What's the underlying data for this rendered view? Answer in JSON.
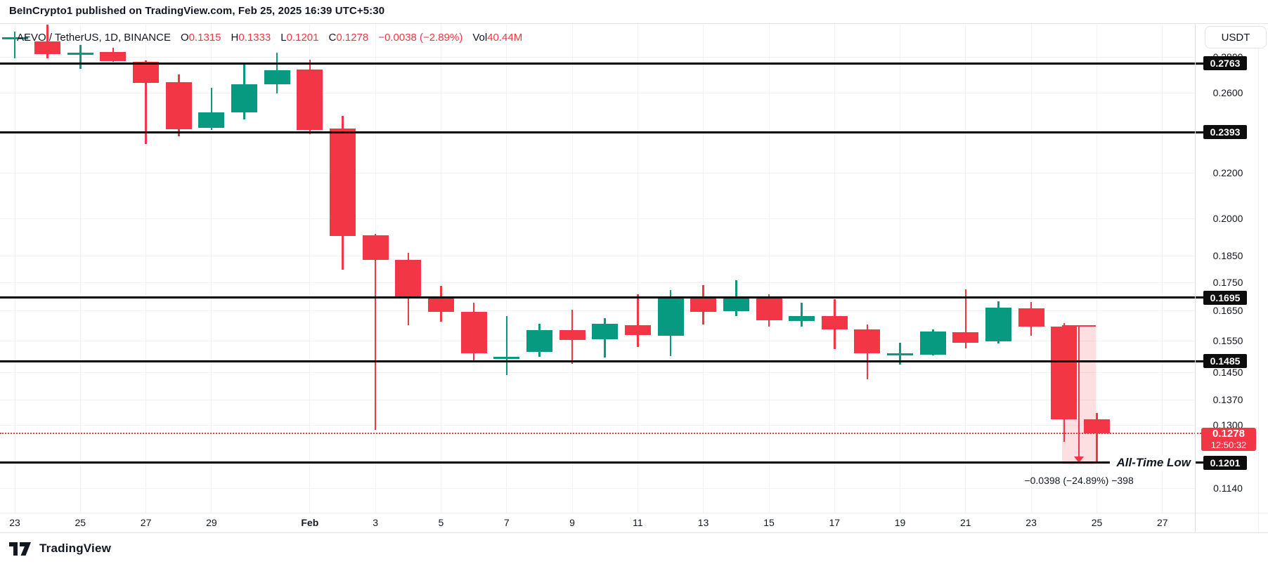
{
  "header": {
    "title": "BeInCrypto1 published on TradingView.com, Feb 25, 2025 16:39 UTC+5:30"
  },
  "legend": {
    "symbol": "AEVO / TetherUS, 1D, BINANCE",
    "open_label": "O",
    "open": "0.1315",
    "high_label": "H",
    "high": "0.1333",
    "low_label": "L",
    "low": "0.1201",
    "close_label": "C",
    "close": "0.1278",
    "change": "−0.0038 (−2.89%)",
    "volume_label": "Vol",
    "volume": "40.44M"
  },
  "price_axis": {
    "currency_button": "USDT",
    "current_price_badge": {
      "price": "0.1278",
      "countdown": "12:50:32"
    }
  },
  "annotations": {
    "all_time_low": "All-Time Low",
    "measurement_label": "−0.0398 (−24.89%) −398"
  },
  "footer": {
    "logo_text": "TradingView"
  },
  "colors": {
    "up": "#089981",
    "down": "#f23645",
    "level_line": "#000000",
    "level_badge_bg": "#0d0d0d",
    "current_price": "#f23645",
    "grid": "#f0f2f6"
  },
  "chart_data": {
    "type": "candlestick",
    "title": "AEVO / TetherUS, 1D, BINANCE",
    "scale": "log",
    "ylabel": "USDT",
    "candles": [
      {
        "date": "Jan 23",
        "o": 0.2905,
        "h": 0.2951,
        "l": 0.2791,
        "c": 0.2913
      },
      {
        "date": "Jan 24",
        "o": 0.289,
        "h": 0.2995,
        "l": 0.279,
        "c": 0.2816
      },
      {
        "date": "Jan 25",
        "o": 0.2818,
        "h": 0.287,
        "l": 0.273,
        "c": 0.2822
      },
      {
        "date": "Jan 26",
        "o": 0.283,
        "h": 0.2852,
        "l": 0.277,
        "c": 0.2776
      },
      {
        "date": "Jan 27",
        "o": 0.2771,
        "h": 0.2781,
        "l": 0.2335,
        "c": 0.2652
      },
      {
        "date": "Jan 28",
        "o": 0.2656,
        "h": 0.2698,
        "l": 0.2373,
        "c": 0.2409
      },
      {
        "date": "Jan 29",
        "o": 0.2414,
        "h": 0.2625,
        "l": 0.2404,
        "c": 0.2494
      },
      {
        "date": "Jan 30",
        "o": 0.2494,
        "h": 0.2755,
        "l": 0.2458,
        "c": 0.2645
      },
      {
        "date": "Jan 31",
        "o": 0.2645,
        "h": 0.2825,
        "l": 0.2594,
        "c": 0.2723
      },
      {
        "date": "Feb 1",
        "o": 0.2727,
        "h": 0.2783,
        "l": 0.2384,
        "c": 0.2406
      },
      {
        "date": "Feb 2",
        "o": 0.241,
        "h": 0.2476,
        "l": 0.1797,
        "c": 0.1927
      },
      {
        "date": "Feb 3",
        "o": 0.193,
        "h": 0.1935,
        "l": 0.1287,
        "c": 0.1833
      },
      {
        "date": "Feb 4",
        "o": 0.1833,
        "h": 0.1862,
        "l": 0.16,
        "c": 0.1695
      },
      {
        "date": "Feb 5",
        "o": 0.1695,
        "h": 0.1737,
        "l": 0.1613,
        "c": 0.1646
      },
      {
        "date": "Feb 6",
        "o": 0.1646,
        "h": 0.1678,
        "l": 0.1483,
        "c": 0.151
      },
      {
        "date": "Feb 7",
        "o": 0.1491,
        "h": 0.1632,
        "l": 0.1443,
        "c": 0.1499
      },
      {
        "date": "Feb 8",
        "o": 0.1513,
        "h": 0.1606,
        "l": 0.1498,
        "c": 0.1585
      },
      {
        "date": "Feb 9",
        "o": 0.1585,
        "h": 0.1653,
        "l": 0.1477,
        "c": 0.1552
      },
      {
        "date": "Feb 10",
        "o": 0.1553,
        "h": 0.1623,
        "l": 0.1496,
        "c": 0.1604
      },
      {
        "date": "Feb 11",
        "o": 0.1601,
        "h": 0.1707,
        "l": 0.1529,
        "c": 0.1568
      },
      {
        "date": "Feb 12",
        "o": 0.1566,
        "h": 0.1722,
        "l": 0.15,
        "c": 0.1697
      },
      {
        "date": "Feb 13",
        "o": 0.1697,
        "h": 0.174,
        "l": 0.1602,
        "c": 0.1645
      },
      {
        "date": "Feb 14",
        "o": 0.1648,
        "h": 0.1758,
        "l": 0.163,
        "c": 0.1697
      },
      {
        "date": "Feb 15",
        "o": 0.1697,
        "h": 0.1707,
        "l": 0.1595,
        "c": 0.1616
      },
      {
        "date": "Feb 16",
        "o": 0.1614,
        "h": 0.1678,
        "l": 0.1595,
        "c": 0.163
      },
      {
        "date": "Feb 17",
        "o": 0.1632,
        "h": 0.169,
        "l": 0.1523,
        "c": 0.1587
      },
      {
        "date": "Feb 18",
        "o": 0.1587,
        "h": 0.1602,
        "l": 0.143,
        "c": 0.151
      },
      {
        "date": "Feb 19",
        "o": 0.1504,
        "h": 0.1543,
        "l": 0.1473,
        "c": 0.1508
      },
      {
        "date": "Feb 20",
        "o": 0.1504,
        "h": 0.1587,
        "l": 0.1502,
        "c": 0.158
      },
      {
        "date": "Feb 21",
        "o": 0.1576,
        "h": 0.1724,
        "l": 0.1525,
        "c": 0.1543
      },
      {
        "date": "Feb 22",
        "o": 0.1548,
        "h": 0.1683,
        "l": 0.154,
        "c": 0.1659
      },
      {
        "date": "Feb 23",
        "o": 0.1657,
        "h": 0.168,
        "l": 0.1565,
        "c": 0.1596
      },
      {
        "date": "Feb 24",
        "o": 0.1596,
        "h": 0.1607,
        "l": 0.1255,
        "c": 0.1315
      },
      {
        "date": "Feb 25",
        "o": 0.1315,
        "h": 0.1333,
        "l": 0.1201,
        "c": 0.1278
      }
    ],
    "horizontal_levels": [
      {
        "price": 0.2763,
        "label": "0.2763"
      },
      {
        "price": 0.2393,
        "label": "0.2393"
      },
      {
        "price": 0.1695,
        "label": "0.1695"
      },
      {
        "price": 0.1485,
        "label": "0.1485"
      },
      {
        "price": 0.1201,
        "label": "0.1201"
      }
    ],
    "price_ticks": [
      {
        "price": 0.28,
        "label": "0.2800"
      },
      {
        "price": 0.26,
        "label": "0.2600"
      },
      {
        "price": 0.22,
        "label": "0.2200"
      },
      {
        "price": 0.2,
        "label": "0.2000"
      },
      {
        "price": 0.185,
        "label": "0.1850"
      },
      {
        "price": 0.175,
        "label": "0.1750"
      },
      {
        "price": 0.165,
        "label": "0.1650"
      },
      {
        "price": 0.155,
        "label": "0.1550"
      },
      {
        "price": 0.145,
        "label": "0.1450"
      },
      {
        "price": 0.137,
        "label": "0.1370"
      },
      {
        "price": 0.13,
        "label": "0.1300"
      },
      {
        "price": 0.114,
        "label": "0.1140"
      }
    ],
    "time_labels": [
      {
        "index": 0,
        "label": "23"
      },
      {
        "index": 2,
        "label": "25"
      },
      {
        "index": 4,
        "label": "27"
      },
      {
        "index": 6,
        "label": "29"
      },
      {
        "index": 9,
        "label": "Feb",
        "month": true
      },
      {
        "index": 11,
        "label": "3"
      },
      {
        "index": 13,
        "label": "5"
      },
      {
        "index": 15,
        "label": "7"
      },
      {
        "index": 17,
        "label": "9"
      },
      {
        "index": 19,
        "label": "11"
      },
      {
        "index": 21,
        "label": "13"
      },
      {
        "index": 23,
        "label": "15"
      },
      {
        "index": 25,
        "label": "17"
      },
      {
        "index": 27,
        "label": "19"
      },
      {
        "index": 29,
        "label": "21"
      },
      {
        "index": 31,
        "label": "23"
      },
      {
        "index": 33,
        "label": "25"
      },
      {
        "index": 35,
        "label": "27"
      }
    ],
    "current_price": 0.1278,
    "all_time_low_price": 0.1201,
    "measurement": {
      "from_index": 32,
      "to_index": 33,
      "top_price": 0.16,
      "bottom_price": 0.1201,
      "label": "−0.0398 (−24.89%) −398"
    }
  }
}
